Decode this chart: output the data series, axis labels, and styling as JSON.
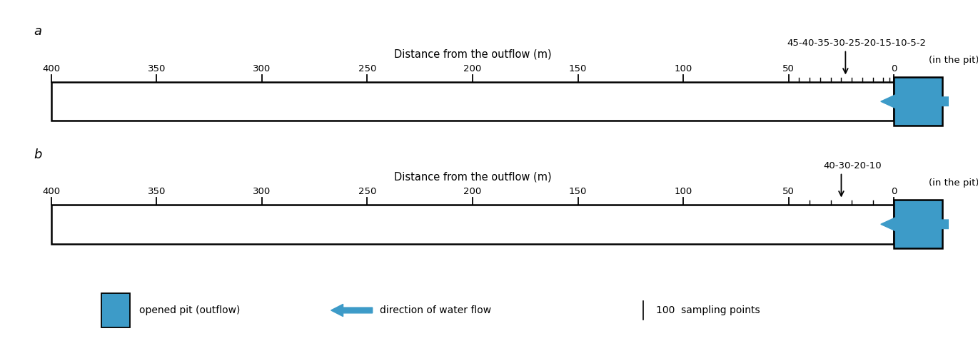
{
  "fig_width": 13.7,
  "fig_height": 4.78,
  "bg_color": "#ffffff",
  "blue_color": "#3d9bc8",
  "panel_a": {
    "label": "a",
    "title": "Distance from the outflow (m)",
    "major_ticks": [
      400,
      350,
      300,
      250,
      200,
      150,
      100,
      50,
      0
    ],
    "fine_ticks": [
      2,
      5,
      10,
      15,
      20,
      25,
      30,
      35,
      40,
      45
    ],
    "arrow_label": "45-40-35-30-25-20-15-10-5-2",
    "arrow_at_m": 23,
    "in_pit_label": "(in the pit)"
  },
  "panel_b": {
    "label": "b",
    "title": "Distance from the outflow (m)",
    "major_ticks": [
      400,
      350,
      300,
      250,
      200,
      150,
      100,
      50,
      0
    ],
    "fine_ticks": [
      10,
      20,
      30,
      40
    ],
    "arrow_label": "40-30-20-10",
    "arrow_at_m": 25,
    "in_pit_label": "(in the pit)"
  },
  "legend": {
    "pit_label": "opened pit (outflow)",
    "flow_label": "direction of water flow",
    "sampling_label": "100  sampling points"
  }
}
